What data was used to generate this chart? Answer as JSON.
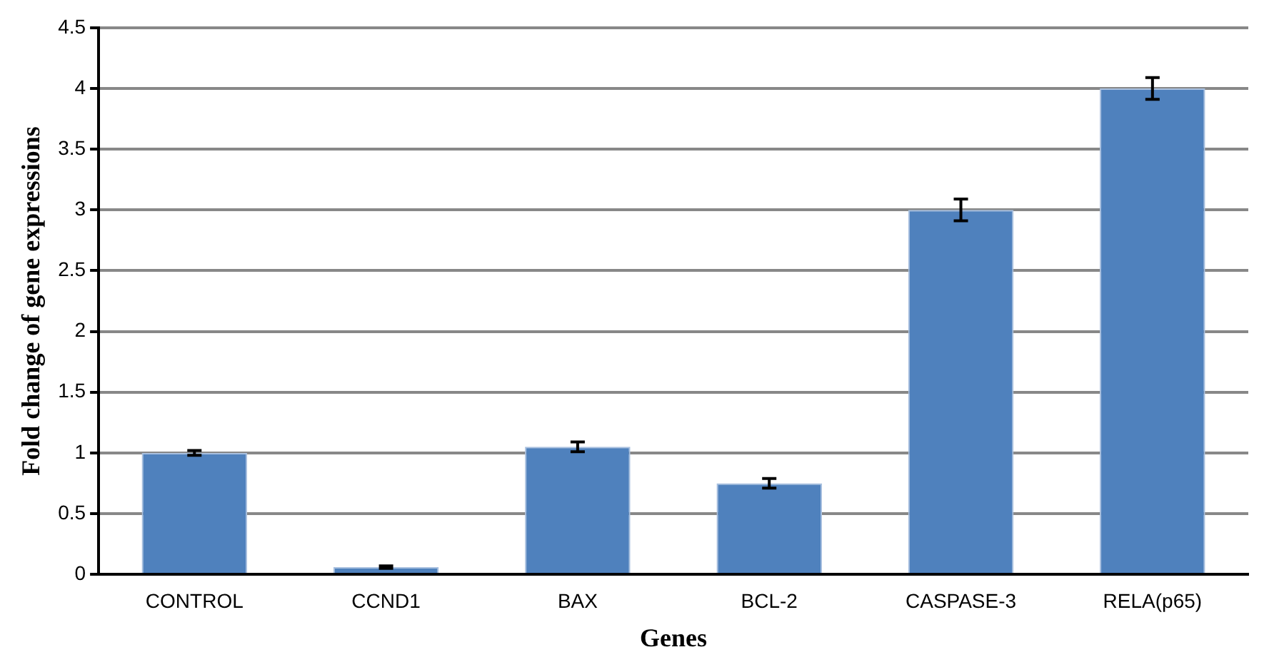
{
  "chart_data": {
    "type": "bar",
    "xlabel": "Genes",
    "ylabel": "Fold change of gene expressions",
    "categories": [
      "CONTROL",
      "CCND1",
      "BAX",
      "BCL-2",
      "CASPASE-3",
      "RELA(p65)"
    ],
    "values": [
      1.0,
      0.06,
      1.05,
      0.75,
      3.0,
      4.0
    ],
    "errors": [
      0.02,
      0.01,
      0.04,
      0.04,
      0.09,
      0.09
    ],
    "color": "#4f81bd",
    "ylim": [
      0,
      4.5
    ],
    "yticks": [
      0,
      0.5,
      1,
      1.5,
      2,
      2.5,
      3,
      3.5,
      4,
      4.5
    ],
    "grid": "y",
    "legend": false
  }
}
